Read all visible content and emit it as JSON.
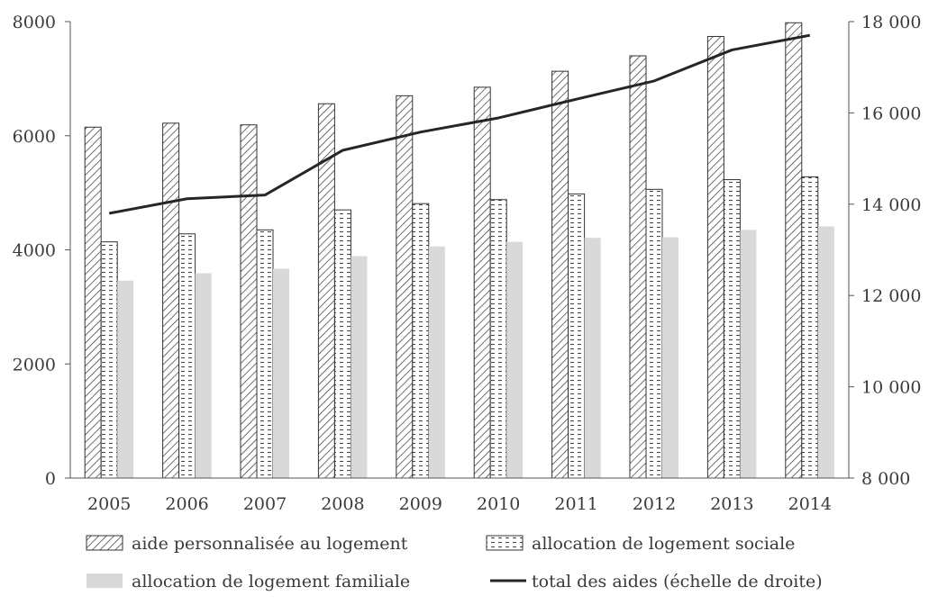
{
  "chart_data": {
    "type": "bar",
    "categories": [
      "2005",
      "2006",
      "2007",
      "2008",
      "2009",
      "2010",
      "2011",
      "2012",
      "2013",
      "2014"
    ],
    "series": [
      {
        "name": "aide personnalisée au logement",
        "kind": "bar",
        "pattern": "diagonal-hatch",
        "axis": "left",
        "values": [
          6150,
          6220,
          6190,
          6560,
          6700,
          6850,
          7130,
          7400,
          7740,
          7980
        ]
      },
      {
        "name": "allocation de logement sociale",
        "kind": "bar",
        "pattern": "dash-pattern",
        "axis": "left",
        "values": [
          4140,
          4280,
          4350,
          4700,
          4810,
          4880,
          4980,
          5060,
          5230,
          5280
        ]
      },
      {
        "name": "allocation de logement familiale",
        "kind": "bar",
        "pattern": "solid-light-gray",
        "axis": "left",
        "values": [
          3460,
          3590,
          3670,
          3890,
          4060,
          4140,
          4210,
          4220,
          4350,
          4410
        ]
      },
      {
        "name": "total des aides (échelle de droite)",
        "kind": "line",
        "axis": "right",
        "values": [
          13800,
          14120,
          14200,
          15180,
          15580,
          15890,
          16300,
          16700,
          17380,
          17700
        ]
      }
    ],
    "y_left": {
      "ylim": [
        0,
        8000
      ],
      "ticks": [
        0,
        2000,
        4000,
        6000,
        8000
      ],
      "tick_labels": [
        "0",
        "2000",
        "4000",
        "6000",
        "8000"
      ]
    },
    "y_right": {
      "ylim": [
        8000,
        18000
      ],
      "ticks": [
        8000,
        10000,
        12000,
        14000,
        16000,
        18000
      ],
      "tick_labels": [
        "8 000",
        "10 000",
        "12 000",
        "14 000",
        "16 000",
        "18 000"
      ]
    },
    "grid": false,
    "legend_position": "bottom",
    "colors": {
      "bar_stroke": "#333333",
      "hatch": "#333333",
      "familiale_fill": "#d9d9d9",
      "line": "#262626",
      "axis": "#555555"
    }
  }
}
